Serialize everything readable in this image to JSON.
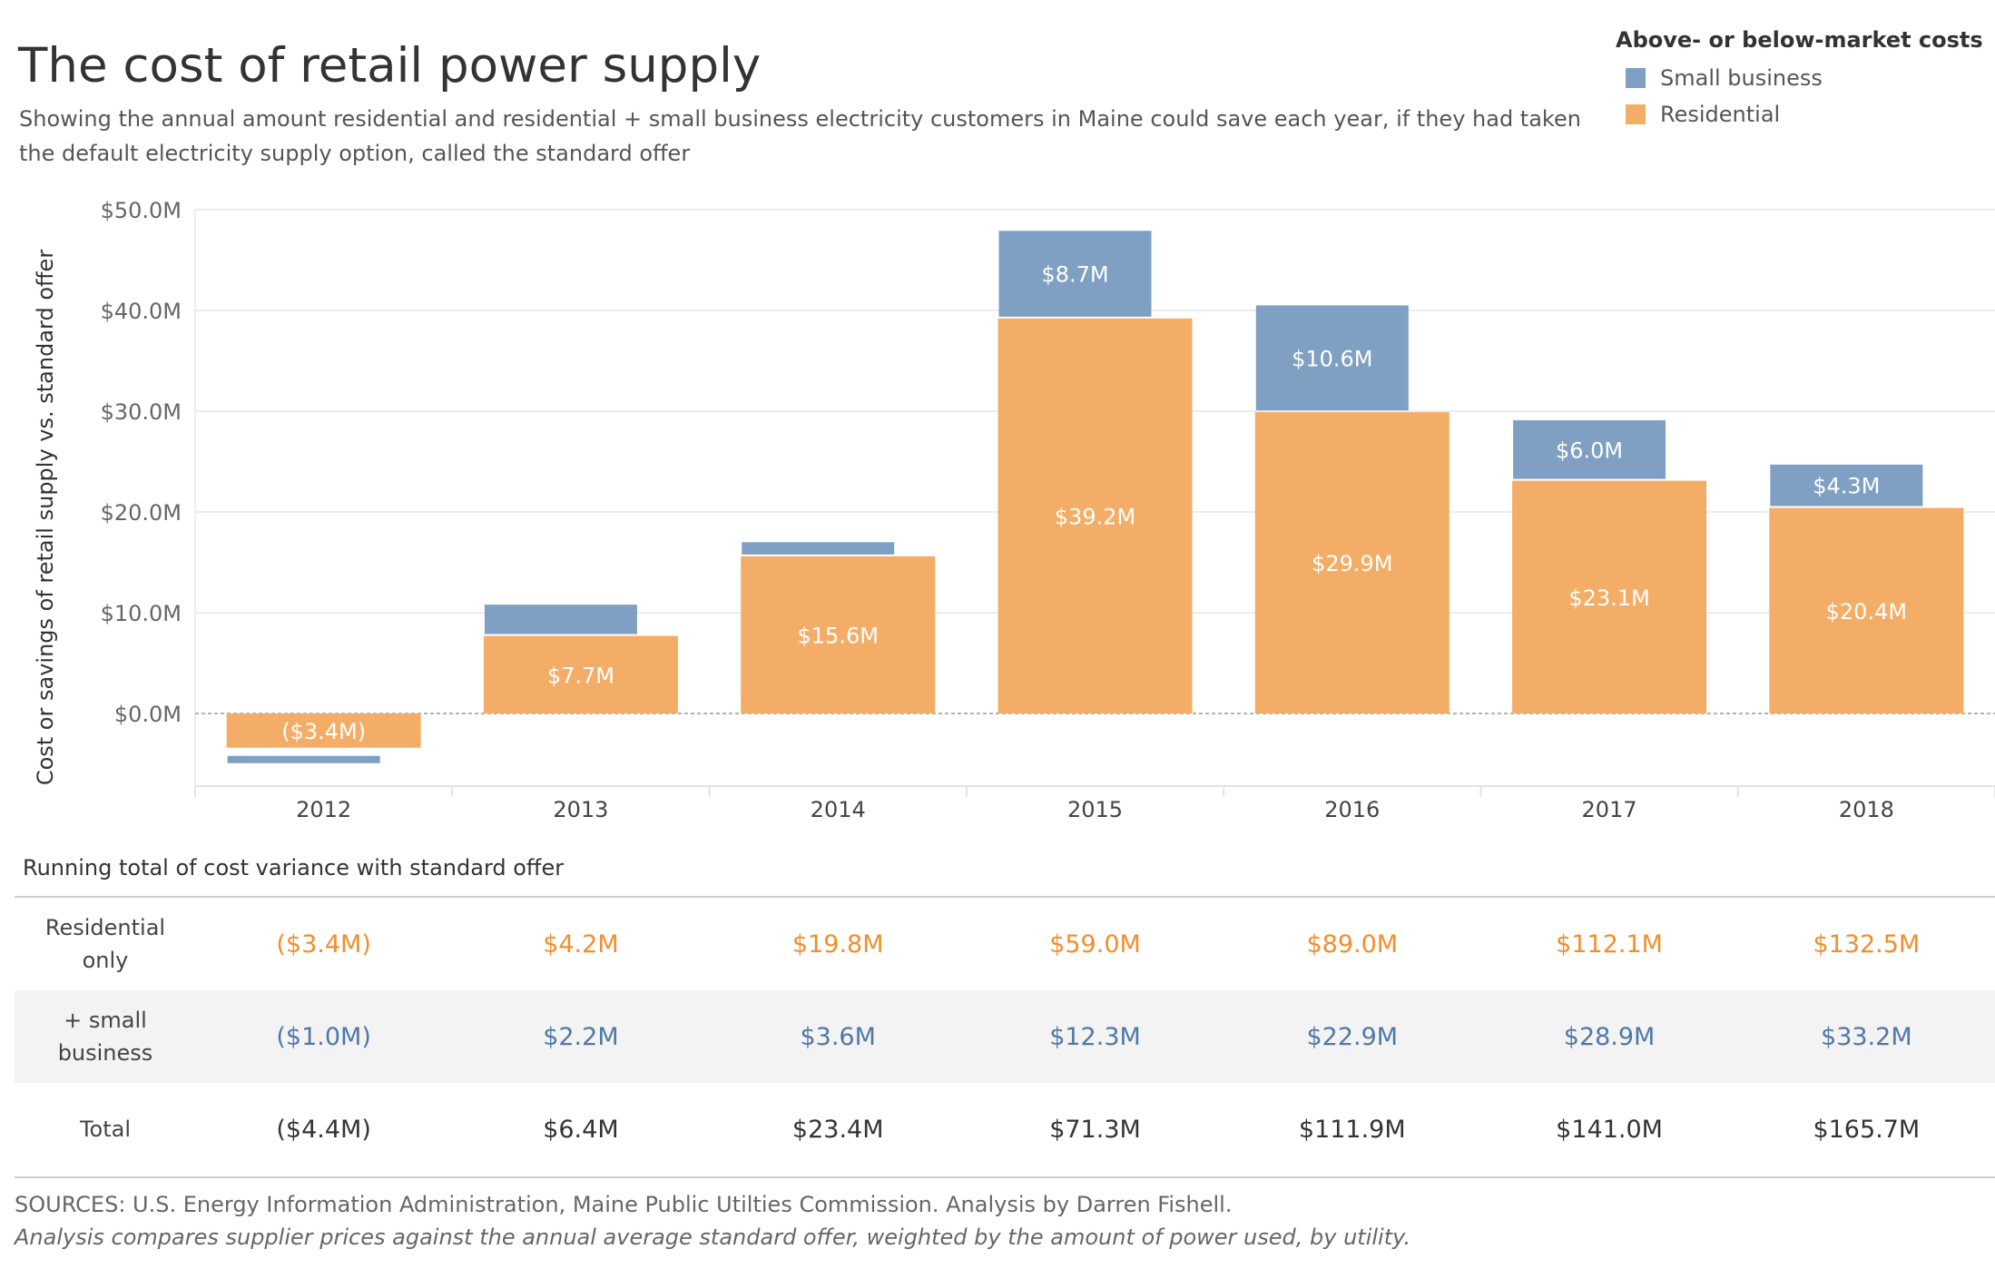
{
  "title": "The cost of retail power supply",
  "subtitle": "Showing the annual amount residential and residential + small business electricity customers in Maine could save each year, if they had taken the default electricity supply option, called the standard offer",
  "legend": {
    "title": "Above- or below-market costs",
    "items": [
      {
        "label": "Small business",
        "color": "#7f9fc3"
      },
      {
        "label": "Residential",
        "color": "#f4ad66"
      }
    ]
  },
  "chart_data": {
    "type": "bar",
    "stacked": true,
    "categories": [
      "2012",
      "2013",
      "2014",
      "2015",
      "2016",
      "2017",
      "2018"
    ],
    "ylabel": "Cost or savings of retail supply vs. standard offer",
    "xlabel": "",
    "ylim": [
      -7,
      50
    ],
    "yticks": [
      0,
      10,
      20,
      30,
      40,
      50
    ],
    "ytick_labels": [
      "$0.0M",
      "$10.0M",
      "$20.0M",
      "$30.0M",
      "$40.0M",
      "$50.0M"
    ],
    "grid": true,
    "legend_position": "top-right",
    "series": [
      {
        "name": "Residential",
        "color": "#f4ad66",
        "values": [
          -3.4,
          7.7,
          15.6,
          39.2,
          29.9,
          23.1,
          20.4
        ],
        "labels": [
          "($3.4M)",
          "$7.7M",
          "$15.6M",
          "$39.2M",
          "$29.9M",
          "$23.1M",
          "$20.4M"
        ]
      },
      {
        "name": "Small business",
        "color": "#7f9fc3",
        "values": [
          -1.0,
          3.1,
          1.4,
          8.7,
          10.6,
          6.0,
          4.3
        ],
        "labels": [
          "",
          "",
          "",
          "$8.7M",
          "$10.6M",
          "$6.0M",
          "$4.3M"
        ]
      }
    ]
  },
  "table": {
    "caption": "Running total of cost variance with standard offer",
    "rows": [
      {
        "label": "Residential only",
        "class": "res",
        "values": [
          "($3.4M)",
          "$4.2M",
          "$19.8M",
          "$59.0M",
          "$89.0M",
          "$112.1M",
          "$132.5M"
        ]
      },
      {
        "label": "+ small business",
        "class": "sb",
        "values": [
          "($1.0M)",
          "$2.2M",
          "$3.6M",
          "$12.3M",
          "$22.9M",
          "$28.9M",
          "$33.2M"
        ]
      },
      {
        "label": "Total",
        "class": "tot",
        "values": [
          "($4.4M)",
          "$6.4M",
          "$23.4M",
          "$71.3M",
          "$111.9M",
          "$141.0M",
          "$165.7M"
        ]
      }
    ]
  },
  "footer": {
    "source": "SOURCES: U.S. Energy Information Administration, Maine Public Utilties Commission. Analysis by Darren Fishell.",
    "note": "Analysis compares supplier prices against the annual average standard offer, weighted by the amount of power used, by utility."
  }
}
